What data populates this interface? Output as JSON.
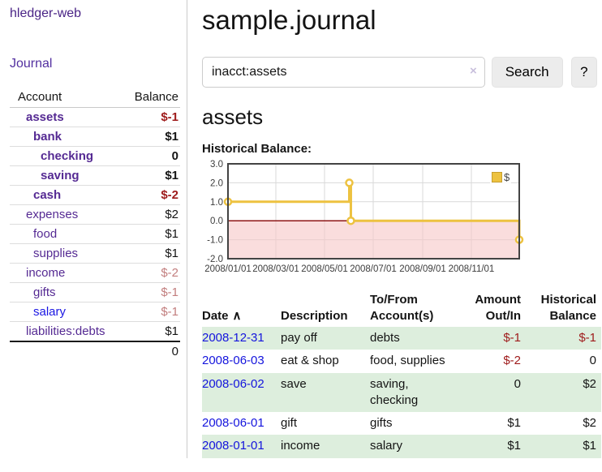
{
  "app": {
    "brand": "hledger-web"
  },
  "nav": {
    "journal": "Journal"
  },
  "sidebar": {
    "columns": {
      "account": "Account",
      "balance": "Balance"
    },
    "accounts": [
      {
        "name": "assets",
        "depth": 0,
        "bold": true,
        "balance": "$-1",
        "tone": "neg-strong",
        "link": "purple"
      },
      {
        "name": "bank",
        "depth": 1,
        "bold": true,
        "balance": "$1",
        "tone": "normal",
        "link": "purple"
      },
      {
        "name": "checking",
        "depth": 2,
        "bold": true,
        "balance": "0",
        "tone": "normal",
        "link": "purple"
      },
      {
        "name": "saving",
        "depth": 2,
        "bold": true,
        "balance": "$1",
        "tone": "normal",
        "link": "purple"
      },
      {
        "name": "cash",
        "depth": 1,
        "bold": true,
        "balance": "$-2",
        "tone": "neg-strong",
        "link": "purple"
      },
      {
        "name": "expenses",
        "depth": 0,
        "bold": false,
        "balance": "$2",
        "tone": "normal",
        "link": "purple"
      },
      {
        "name": "food",
        "depth": 1,
        "bold": false,
        "balance": "$1",
        "tone": "normal",
        "link": "purple"
      },
      {
        "name": "supplies",
        "depth": 1,
        "bold": false,
        "balance": "$1",
        "tone": "normal",
        "link": "purple"
      },
      {
        "name": "income",
        "depth": 0,
        "bold": false,
        "balance": "$-2",
        "tone": "neg-soft",
        "link": "purple"
      },
      {
        "name": "gifts",
        "depth": 1,
        "bold": false,
        "balance": "$-1",
        "tone": "neg-soft",
        "link": "purple"
      },
      {
        "name": "salary",
        "depth": 1,
        "bold": false,
        "balance": "$-1",
        "tone": "neg-soft",
        "link": "blue"
      },
      {
        "name": "liabilities:debts",
        "depth": 0,
        "bold": false,
        "balance": "$1",
        "tone": "normal",
        "link": "purple"
      }
    ],
    "total": "0"
  },
  "main": {
    "title": "sample.journal",
    "search": {
      "value": "inacct:assets",
      "clear_icon": "×",
      "button": "Search",
      "help": "?"
    },
    "account_heading": "assets",
    "section_label": "Historical Balance:"
  },
  "chart_data": {
    "type": "line",
    "title": "Historical Balance:",
    "step": true,
    "series": [
      {
        "name": "$",
        "color": "#edc240",
        "points": [
          {
            "date": "2008-01-01",
            "day": 0,
            "value": 1
          },
          {
            "date": "2008-06-01",
            "day": 152,
            "value": 2
          },
          {
            "date": "2008-06-03",
            "day": 154,
            "value": 0
          },
          {
            "date": "2008-12-31",
            "day": 365,
            "value": -1
          }
        ]
      }
    ],
    "x_ticks": [
      {
        "label": "2008/01/01",
        "day": 0
      },
      {
        "label": "2008/03/01",
        "day": 60
      },
      {
        "label": "2008/05/01",
        "day": 121
      },
      {
        "label": "2008/07/01",
        "day": 182
      },
      {
        "label": "2008/09/01",
        "day": 244
      },
      {
        "label": "2008/11/01",
        "day": 305
      }
    ],
    "x_range_days": [
      0,
      365
    ],
    "y_ticks": [
      "3.0",
      "2.0",
      "1.0",
      "0.0",
      "-1.0",
      "-2.0"
    ],
    "ylim": [
      -2,
      3
    ],
    "legend": {
      "label": "$",
      "position": "top-right"
    },
    "colors": {
      "negative_region_fill": "#f6c7c7",
      "zero_line": "#8e1414",
      "grid": "#d9d9d9",
      "border": "#434343",
      "tick_text": "#3c3c3c"
    }
  },
  "register": {
    "sort_indicator": "∧",
    "columns": {
      "date": "Date",
      "description": "Description",
      "accounts": "To/From Account(s)",
      "amount": "Amount Out/In",
      "balance": "Historical Balance"
    },
    "rows": [
      {
        "date": "2008-12-31",
        "description": "pay off",
        "accounts": "debts",
        "amount": "$-1",
        "amount_negative": true,
        "balance": "$-1",
        "balance_negative": true
      },
      {
        "date": "2008-06-03",
        "description": "eat & shop",
        "accounts": "food, supplies",
        "amount": "$-2",
        "amount_negative": true,
        "balance": "0",
        "balance_negative": false
      },
      {
        "date": "2008-06-02",
        "description": "save",
        "accounts": "saving, checking",
        "amount": "0",
        "amount_negative": false,
        "balance": "$2",
        "balance_negative": false
      },
      {
        "date": "2008-06-01",
        "description": "gift",
        "accounts": "gifts",
        "amount": "$1",
        "amount_negative": false,
        "balance": "$2",
        "balance_negative": false
      },
      {
        "date": "2008-01-01",
        "description": "income",
        "accounts": "salary",
        "amount": "$1",
        "amount_negative": false,
        "balance": "$1",
        "balance_negative": false
      }
    ]
  }
}
